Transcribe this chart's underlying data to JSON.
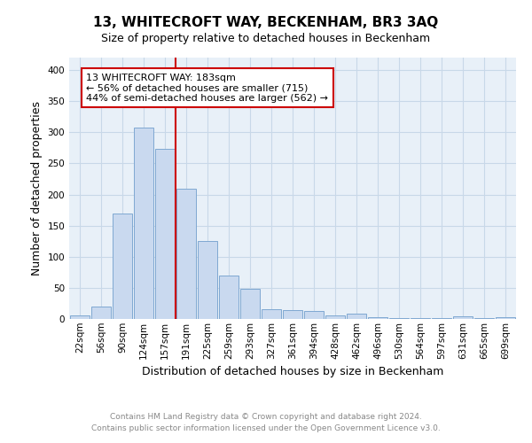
{
  "title": "13, WHITECROFT WAY, BECKENHAM, BR3 3AQ",
  "subtitle": "Size of property relative to detached houses in Beckenham",
  "xlabel": "Distribution of detached houses by size in Beckenham",
  "ylabel": "Number of detached properties",
  "footnote1": "Contains HM Land Registry data © Crown copyright and database right 2024.",
  "footnote2": "Contains public sector information licensed under the Open Government Licence v3.0.",
  "categories": [
    "22sqm",
    "56sqm",
    "90sqm",
    "124sqm",
    "157sqm",
    "191sqm",
    "225sqm",
    "259sqm",
    "293sqm",
    "327sqm",
    "361sqm",
    "394sqm",
    "428sqm",
    "462sqm",
    "496sqm",
    "530sqm",
    "564sqm",
    "597sqm",
    "631sqm",
    "665sqm",
    "699sqm"
  ],
  "values": [
    5,
    20,
    170,
    308,
    273,
    210,
    125,
    70,
    49,
    15,
    14,
    13,
    5,
    8,
    3,
    2,
    1,
    1,
    4,
    2,
    3
  ],
  "bar_color": "#c9d9ef",
  "bar_edge_color": "#7fa8d1",
  "vline_x_index": 5,
  "vline_color": "#cc0000",
  "annotation_text": "13 WHITECROFT WAY: 183sqm\n← 56% of detached houses are smaller (715)\n44% of semi-detached houses are larger (562) →",
  "annotation_box_color": "#ffffff",
  "annotation_box_edge": "#cc0000",
  "ylim": [
    0,
    420
  ],
  "yticks": [
    0,
    50,
    100,
    150,
    200,
    250,
    300,
    350,
    400
  ],
  "grid_color": "#c8d8e8",
  "plot_bg_color": "#e8f0f8",
  "title_fontsize": 11,
  "subtitle_fontsize": 9,
  "ylabel_fontsize": 9,
  "xlabel_fontsize": 9,
  "tick_fontsize": 7.5,
  "annot_fontsize": 8
}
